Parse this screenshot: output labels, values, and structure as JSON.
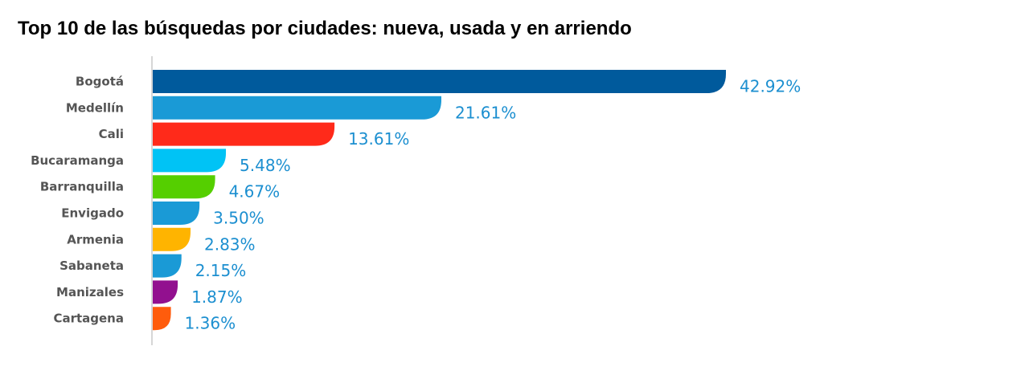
{
  "chart_data": {
    "type": "bar",
    "orientation": "horizontal",
    "title": "Top 10 de las búsquedas por ciudades: nueva, usada y en arriendo",
    "categories": [
      "Bogotá",
      "Medellín",
      "Cali",
      "Bucaramanga",
      "Barranquilla",
      "Envigado",
      "Armenia",
      "Sabaneta",
      "Manizales",
      "Cartagena"
    ],
    "values": [
      42.92,
      21.61,
      13.61,
      5.48,
      4.67,
      3.5,
      2.83,
      2.15,
      1.87,
      1.36
    ],
    "value_labels": [
      "42.92%",
      "21.61%",
      "13.61%",
      "5.48%",
      "4.67%",
      "3.50%",
      "2.83%",
      "2.15%",
      "1.87%",
      "1.36%"
    ],
    "colors": [
      "#005a9c",
      "#1a9ad6",
      "#ff2a1a",
      "#00c3f5",
      "#55cf00",
      "#1a9ad6",
      "#ffb400",
      "#1a9ad6",
      "#92108f",
      "#ff5c0c"
    ],
    "xlim": [
      0,
      42.92
    ],
    "grid": false,
    "legend": "none"
  }
}
